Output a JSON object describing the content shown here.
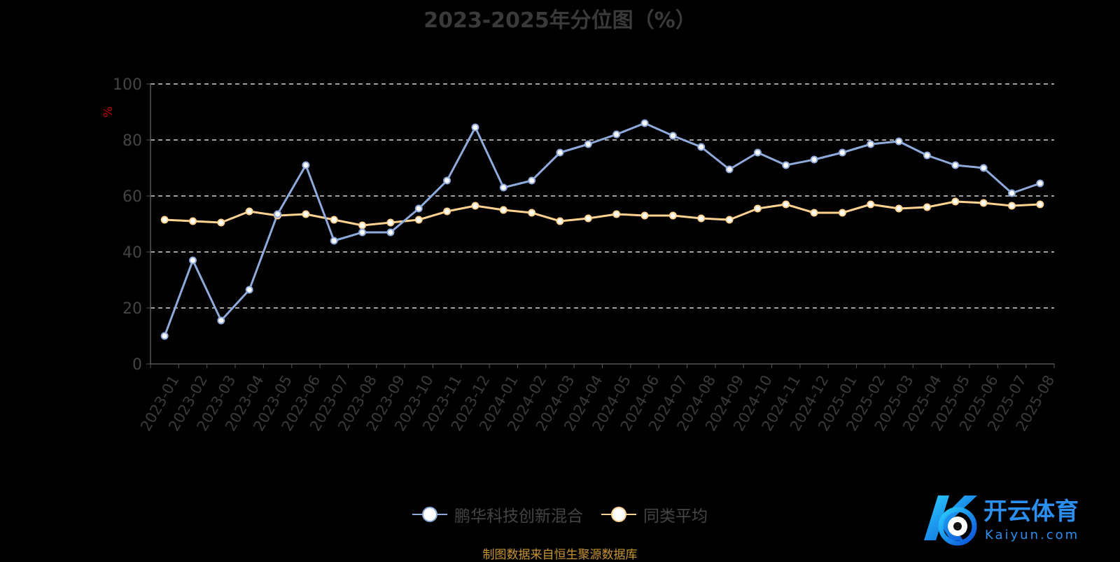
{
  "title": "2023-2025年分位图（%）",
  "source": "制图数据来自恒生聚源数据库",
  "logo": {
    "brand": "开云体育",
    "domain": "Kaiyun.com"
  },
  "colors": {
    "series1": "#8eaadb",
    "series2": "#ffd28f",
    "axis": "#555555",
    "unit": "#c00000",
    "title": "#3a3a3a",
    "source": "#c9942e"
  },
  "chart_data": {
    "type": "line",
    "title": "2023-2025年分位图（%）",
    "ylabel": "%",
    "ylim": [
      0,
      100
    ],
    "yticks": [
      0,
      20,
      40,
      60,
      80,
      100
    ],
    "grid": "horizontal dashed",
    "legend": "bottom-center",
    "x": [
      "2023-01",
      "2023-02",
      "2023-03",
      "2023-04",
      "2023-05",
      "2023-06",
      "2023-07",
      "2023-08",
      "2023-09",
      "2023-10",
      "2023-11",
      "2023-12",
      "2024-01",
      "2024-02",
      "2024-03",
      "2024-04",
      "2024-05",
      "2024-06",
      "2024-07",
      "2024-08",
      "2024-09",
      "2024-10",
      "2024-11",
      "2024-12",
      "2025-01",
      "2025-02",
      "2025-03",
      "2025-04",
      "2025-05",
      "2025-06",
      "2025-07",
      "2025-08"
    ],
    "series": [
      {
        "name": "鹏华科技创新混合",
        "values": [
          10.0,
          37.0,
          15.5,
          26.5,
          53.5,
          71.0,
          44.0,
          47.0,
          47.0,
          55.5,
          65.5,
          84.5,
          63.0,
          65.5,
          75.5,
          78.5,
          82.0,
          86.0,
          81.5,
          77.5,
          69.5,
          75.5,
          71.0,
          73.0,
          75.5,
          78.5,
          79.5,
          74.5,
          71.0,
          70.0,
          61.0,
          64.5
        ]
      },
      {
        "name": "同类平均",
        "values": [
          51.5,
          51.0,
          50.5,
          54.5,
          53.0,
          53.5,
          51.5,
          49.5,
          50.5,
          51.5,
          54.5,
          56.5,
          55.0,
          54.0,
          51.0,
          52.0,
          53.5,
          53.0,
          53.0,
          52.0,
          51.5,
          55.5,
          57.0,
          54.0,
          54.0,
          57.0,
          55.5,
          56.0,
          58.0,
          57.5,
          56.5,
          57.0
        ]
      }
    ]
  }
}
